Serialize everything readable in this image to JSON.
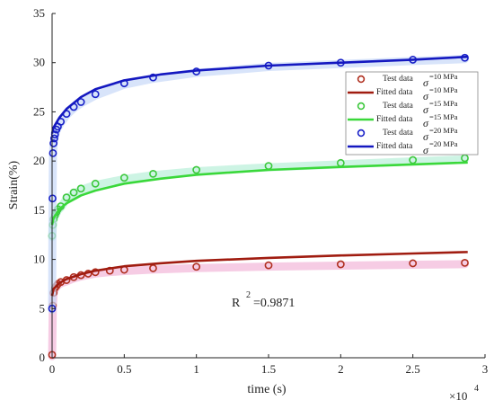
{
  "chart_data": {
    "type": "scatter",
    "title": "",
    "xlabel": "time (s)",
    "ylabel": "Strain(%)",
    "x_multiplier_label": "×10",
    "x_multiplier_exponent": "4",
    "xlim": [
      0,
      3
    ],
    "ylim": [
      0,
      35
    ],
    "x_ticks": [
      "0",
      "0.5",
      "1",
      "1.5",
      "2",
      "2.5",
      "3"
    ],
    "y_ticks": [
      "0",
      "5",
      "10",
      "15",
      "20",
      "25",
      "30",
      "35"
    ],
    "grid": false,
    "legend_position": "right",
    "annotation": {
      "base": "R",
      "exp": "2",
      "text": "=0.9871",
      "x": 1.35,
      "y": 5.2
    },
    "series": [
      {
        "name": "Test data",
        "stress_label": "=10 MPa",
        "kind": "markers",
        "color": "#b03020",
        "shadow": "#f2b6d8",
        "x": [
          0,
          0.005,
          0.01,
          0.02,
          0.03,
          0.04,
          0.06,
          0.1,
          0.15,
          0.2,
          0.25,
          0.3,
          0.4,
          0.5,
          0.7,
          1.0,
          1.5,
          2.0,
          2.5,
          2.86
        ],
        "y": [
          0.3,
          5.3,
          6.6,
          7.1,
          7.3,
          7.5,
          7.7,
          7.9,
          8.2,
          8.4,
          8.55,
          8.7,
          8.85,
          8.95,
          9.1,
          9.25,
          9.4,
          9.5,
          9.6,
          9.65
        ]
      },
      {
        "name": "Fitted data",
        "stress_label": "=10 MPa",
        "kind": "line",
        "color": "#a01c10",
        "x": [
          0,
          0.01,
          0.05,
          0.1,
          0.2,
          0.3,
          0.5,
          0.75,
          1.0,
          1.5,
          2.0,
          2.5,
          2.88
        ],
        "y": [
          6.3,
          7.0,
          7.6,
          8.0,
          8.5,
          8.85,
          9.3,
          9.6,
          9.85,
          10.15,
          10.4,
          10.6,
          10.75
        ]
      },
      {
        "name": "Test data",
        "stress_label": "=15 MPa",
        "kind": "markers",
        "color": "#3cc83c",
        "shadow": "#b8f0d8",
        "x": [
          0,
          0.005,
          0.01,
          0.02,
          0.03,
          0.04,
          0.06,
          0.1,
          0.15,
          0.2,
          0.3,
          0.5,
          0.7,
          1.0,
          1.5,
          2.0,
          2.5,
          2.86
        ],
        "y": [
          12.4,
          13.5,
          14.1,
          14.5,
          14.8,
          15.1,
          15.4,
          16.3,
          16.8,
          17.2,
          17.7,
          18.3,
          18.7,
          19.1,
          19.5,
          19.8,
          20.1,
          20.3
        ]
      },
      {
        "name": "Fitted data",
        "stress_label": "=15 MPa",
        "kind": "line",
        "color": "#3ad83a",
        "x": [
          0,
          0.01,
          0.05,
          0.1,
          0.2,
          0.3,
          0.5,
          0.75,
          1.0,
          1.5,
          2.0,
          2.5,
          2.88
        ],
        "y": [
          13.5,
          14.2,
          15.1,
          15.7,
          16.5,
          17.0,
          17.7,
          18.2,
          18.6,
          19.1,
          19.4,
          19.65,
          19.85
        ]
      },
      {
        "name": "Test data",
        "stress_label": "=20 MPa",
        "kind": "markers",
        "color": "#1820c8",
        "shadow": "#c8d8f8",
        "x": [
          0,
          0.003,
          0.006,
          0.01,
          0.015,
          0.02,
          0.03,
          0.04,
          0.06,
          0.1,
          0.15,
          0.2,
          0.3,
          0.5,
          0.7,
          1.0,
          1.5,
          2.0,
          2.5,
          2.86
        ],
        "y": [
          5.0,
          16.2,
          20.8,
          21.8,
          22.3,
          22.7,
          23.2,
          23.5,
          24.0,
          24.8,
          25.5,
          26.0,
          26.8,
          27.9,
          28.5,
          29.1,
          29.7,
          30.0,
          30.3,
          30.5
        ]
      },
      {
        "name": "Fitted data",
        "stress_label": "=20 MPa",
        "kind": "line",
        "color": "#1418c0",
        "x": [
          0,
          0.01,
          0.03,
          0.05,
          0.1,
          0.2,
          0.3,
          0.5,
          0.75,
          1.0,
          1.5,
          2.0,
          2.5,
          2.88
        ],
        "y": [
          22.8,
          23.4,
          23.9,
          24.4,
          25.3,
          26.5,
          27.3,
          28.2,
          28.8,
          29.2,
          29.7,
          30.0,
          30.3,
          30.6
        ]
      }
    ]
  }
}
